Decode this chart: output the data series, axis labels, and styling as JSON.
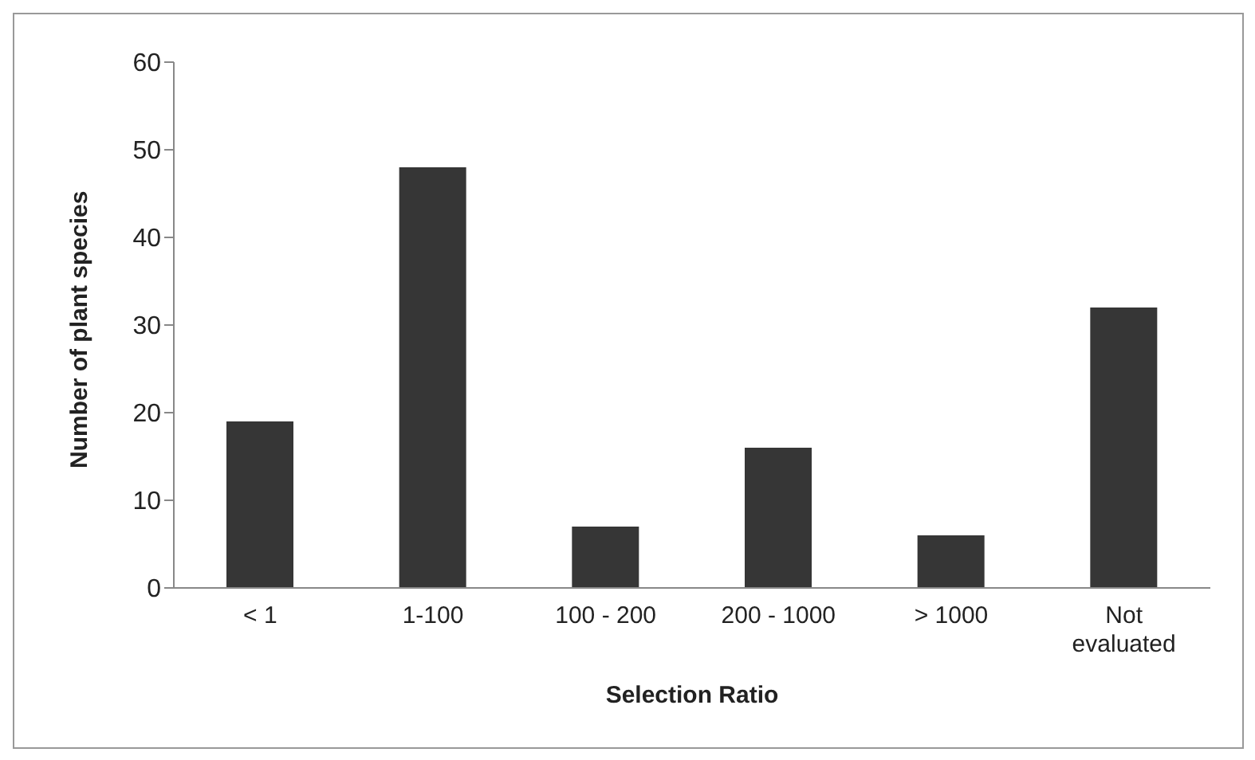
{
  "chart_data": {
    "type": "bar",
    "xlabel": "Selection Ratio",
    "ylabel": "Number of plant species",
    "categories": [
      "< 1",
      "1-100",
      "100 - 200",
      "200 - 1000",
      "> 1000",
      "Not evaluated"
    ],
    "values": [
      19,
      48,
      7,
      16,
      6,
      32
    ],
    "color": "#363636",
    "ylim": [
      0,
      60
    ],
    "yticks": [
      0,
      10,
      20,
      30,
      40,
      50,
      60
    ],
    "grid": false,
    "legend": false
  }
}
